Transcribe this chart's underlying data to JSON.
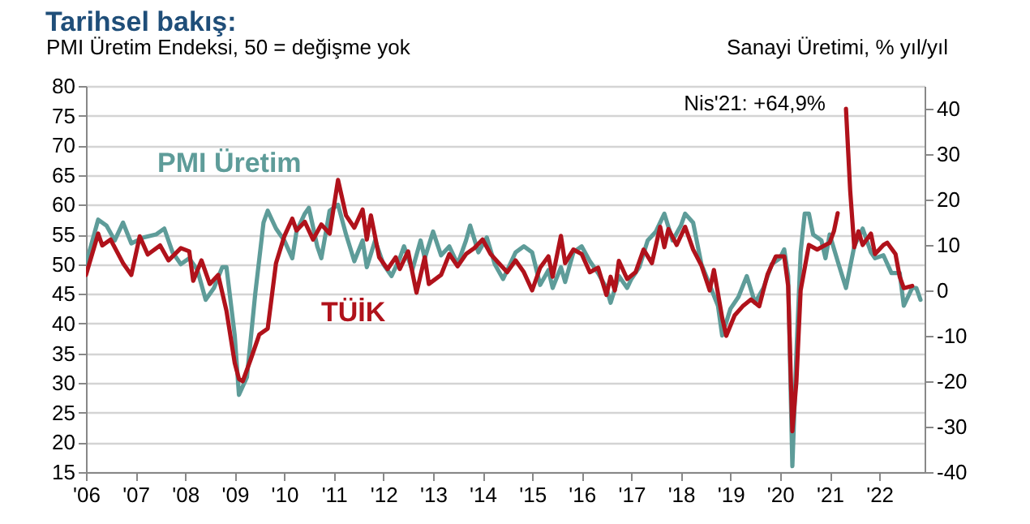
{
  "chart_data": {
    "type": "line",
    "title": "Tarihsel bakış:",
    "ylabel": "PMI Üretim Endeksi, 50 = değişme yok",
    "y2label": "Sanayi Üretimi, % yıl/yıl",
    "annotations": [
      "Nis'21: +64,9%"
    ],
    "xlim": [
      "2006-01",
      "2022-12"
    ],
    "xticks": [
      {
        "value": "2006-01",
        "label": "'06"
      },
      {
        "value": "2007-01",
        "label": "'07"
      },
      {
        "value": "2008-01",
        "label": "'08"
      },
      {
        "value": "2009-01",
        "label": "'09"
      },
      {
        "value": "2010-01",
        "label": "'10"
      },
      {
        "value": "2011-01",
        "label": "'11"
      },
      {
        "value": "2012-01",
        "label": "'12"
      },
      {
        "value": "2013-01",
        "label": "'13"
      },
      {
        "value": "2014-01",
        "label": "'14"
      },
      {
        "value": "2015-01",
        "label": "'15"
      },
      {
        "value": "2016-01",
        "label": "'16"
      },
      {
        "value": "2017-01",
        "label": "'17"
      },
      {
        "value": "2018-01",
        "label": "'18"
      },
      {
        "value": "2019-01",
        "label": "'19"
      },
      {
        "value": "2020-01",
        "label": "'20"
      },
      {
        "value": "2021-01",
        "label": "'21"
      },
      {
        "value": "2022-01",
        "label": "'22"
      }
    ],
    "ylim": [
      15,
      80
    ],
    "yticks": [
      15,
      20,
      25,
      30,
      35,
      40,
      45,
      50,
      55,
      60,
      65,
      70,
      75,
      80
    ],
    "y2lim": [
      -40,
      45
    ],
    "y2ticks": [
      -40,
      -30,
      -20,
      -10,
      0,
      10,
      20,
      30,
      40
    ],
    "grid": "y",
    "line_style": "solid",
    "series": [
      {
        "name": "PMI Üretim",
        "color": "#5e9c99",
        "x": [
          "2006-01",
          "2006-04",
          "2006-06",
          "2006-08",
          "2006-10",
          "2006-12",
          "2007-03",
          "2007-06",
          "2007-08",
          "2007-10",
          "2007-12",
          "2008-02",
          "2008-04",
          "2008-06",
          "2008-08",
          "2008-10",
          "2008-11",
          "2009-01",
          "2009-02",
          "2009-04",
          "2009-06",
          "2009-08",
          "2009-09",
          "2009-11",
          "2010-01",
          "2010-03",
          "2010-04",
          "2010-06",
          "2010-07",
          "2010-09",
          "2010-10",
          "2010-12",
          "2011-02",
          "2011-04",
          "2011-06",
          "2011-08",
          "2011-09",
          "2011-11",
          "2012-01",
          "2012-03",
          "2012-05",
          "2012-06",
          "2012-08",
          "2012-10",
          "2012-11",
          "2013-01",
          "2013-03",
          "2013-05",
          "2013-07",
          "2013-09",
          "2013-10",
          "2013-12",
          "2014-02",
          "2014-04",
          "2014-06",
          "2014-09",
          "2014-11",
          "2015-01",
          "2015-03",
          "2015-05",
          "2015-06",
          "2015-08",
          "2015-09",
          "2015-11",
          "2016-01",
          "2016-03",
          "2016-05",
          "2016-07",
          "2016-08",
          "2016-10",
          "2016-12",
          "2017-01",
          "2017-03",
          "2017-05",
          "2017-07",
          "2017-09",
          "2017-11",
          "2018-01",
          "2018-02",
          "2018-04",
          "2018-06",
          "2018-08",
          "2018-10",
          "2018-11",
          "2019-01",
          "2019-03",
          "2019-05",
          "2019-07",
          "2019-09",
          "2019-11",
          "2020-01",
          "2020-02",
          "2020-03",
          "2020-04",
          "2020-05",
          "2020-06",
          "2020-07",
          "2020-08",
          "2020-09",
          "2020-11",
          "2020-12",
          "2021-01",
          "2021-03",
          "2021-05",
          "2021-07",
          "2021-09",
          "2021-11",
          "2021-12",
          "2022-02",
          "2022-04",
          "2022-06",
          "2022-07",
          "2022-09",
          "2022-10",
          "2022-11"
        ],
        "values": [
          50,
          57.5,
          56.5,
          54,
          57,
          53.5,
          54.5,
          55,
          56,
          52,
          50,
          51,
          49,
          44,
          46,
          49.5,
          49.5,
          38,
          28,
          31,
          45,
          57,
          59,
          56,
          54,
          51,
          55.5,
          58.5,
          59.5,
          53,
          51,
          59,
          60,
          55,
          50.5,
          54,
          49.5,
          54,
          50,
          48,
          51,
          53,
          49,
          54,
          51,
          55.5,
          51.5,
          53,
          50,
          54,
          56.5,
          52,
          54.5,
          50,
          47.5,
          52,
          53,
          52,
          46.5,
          49,
          46,
          49.5,
          47,
          52,
          53,
          50.5,
          48.5,
          46,
          43.5,
          48,
          46,
          47.5,
          49.5,
          54,
          55.5,
          58.5,
          54,
          56.5,
          58.5,
          57,
          50,
          46.5,
          43,
          38,
          42.5,
          44.5,
          48,
          43.5,
          46,
          50,
          51,
          52.5,
          48,
          16,
          35,
          52,
          58.5,
          58.5,
          55,
          54,
          51,
          55,
          50.5,
          46,
          53,
          56,
          52,
          51,
          51.5,
          48.5,
          48.5,
          43,
          46,
          46,
          44
        ]
      },
      {
        "name": "TÜİK",
        "color": "#b0121b",
        "axis": "y2",
        "x": [
          "2006-01",
          "2006-04",
          "2006-05",
          "2006-07",
          "2006-10",
          "2006-12",
          "2007-02",
          "2007-04",
          "2007-07",
          "2007-09",
          "2007-12",
          "2008-02",
          "2008-03",
          "2008-05",
          "2008-07",
          "2008-09",
          "2008-11",
          "2009-01",
          "2009-02",
          "2009-03",
          "2009-05",
          "2009-07",
          "2009-09",
          "2009-11",
          "2010-01",
          "2010-03",
          "2010-04",
          "2010-06",
          "2010-08",
          "2010-10",
          "2010-12",
          "2011-02",
          "2011-04",
          "2011-06",
          "2011-08",
          "2011-09",
          "2011-10",
          "2011-12",
          "2012-02",
          "2012-04",
          "2012-05",
          "2012-07",
          "2012-09",
          "2012-11",
          "2012-12",
          "2013-03",
          "2013-05",
          "2013-07",
          "2013-09",
          "2013-11",
          "2014-01",
          "2014-03",
          "2014-05",
          "2014-07",
          "2014-09",
          "2014-11",
          "2015-01",
          "2015-03",
          "2015-05",
          "2015-06",
          "2015-08",
          "2015-09",
          "2015-11",
          "2016-01",
          "2016-03",
          "2016-05",
          "2016-07",
          "2016-08",
          "2016-09",
          "2016-10",
          "2016-12",
          "2017-02",
          "2017-04",
          "2017-06",
          "2017-08",
          "2017-09",
          "2017-10",
          "2017-12",
          "2018-02",
          "2018-04",
          "2018-06",
          "2018-08",
          "2018-09",
          "2018-11",
          "2018-12",
          "2019-02",
          "2019-04",
          "2019-06",
          "2019-08",
          "2019-10",
          "2019-12",
          "2020-02",
          "2020-03",
          "2020-04",
          "2020-05",
          "2020-06",
          "2020-08",
          "2020-10",
          "2020-12",
          "2021-01",
          "2021-02",
          "2021-03",
          "2021-04",
          "2021-05",
          "2021-06",
          "2021-07",
          "2021-08",
          "2021-09",
          "2021-11",
          "2021-12",
          "2022-02",
          "2022-03",
          "2022-05",
          "2022-06",
          "2022-07",
          "2022-09"
        ],
        "values": [
          3.4,
          12.5,
          9.9,
          11.2,
          6,
          3.4,
          11.9,
          7.9,
          9.9,
          6.6,
          9.3,
          8.6,
          2.1,
          6.6,
          1.4,
          3.4,
          -4.5,
          -16,
          -19.5,
          -20,
          -15,
          -9.7,
          -8.4,
          6,
          11.9,
          15.8,
          13.2,
          15.1,
          11.2,
          14.5,
          12.5,
          24.3,
          16.5,
          13.8,
          17.8,
          11.2,
          16.5,
          7.3,
          4.7,
          7.3,
          4.7,
          8.6,
          -0.5,
          7.3,
          1.4,
          3.4,
          8,
          5.3,
          8,
          9.3,
          11.2,
          8,
          6,
          4,
          6.6,
          4,
          0,
          5,
          7.5,
          3,
          12,
          6,
          9,
          8,
          4,
          5,
          -1,
          3,
          0,
          6.5,
          2.5,
          4,
          9,
          6,
          14,
          9.5,
          13.5,
          10,
          14,
          9,
          5.5,
          0,
          4.5,
          -6,
          -10,
          -5.5,
          -3.5,
          -2,
          -3.5,
          3.5,
          7.5,
          7.5,
          1,
          -31,
          -20,
          0,
          10,
          9,
          10,
          10.5,
          13,
          17,
          null,
          40,
          22,
          9.5,
          13,
          10,
          12.5,
          8,
          10,
          10.5,
          8,
          3,
          0.5,
          1
        ]
      }
    ]
  }
}
